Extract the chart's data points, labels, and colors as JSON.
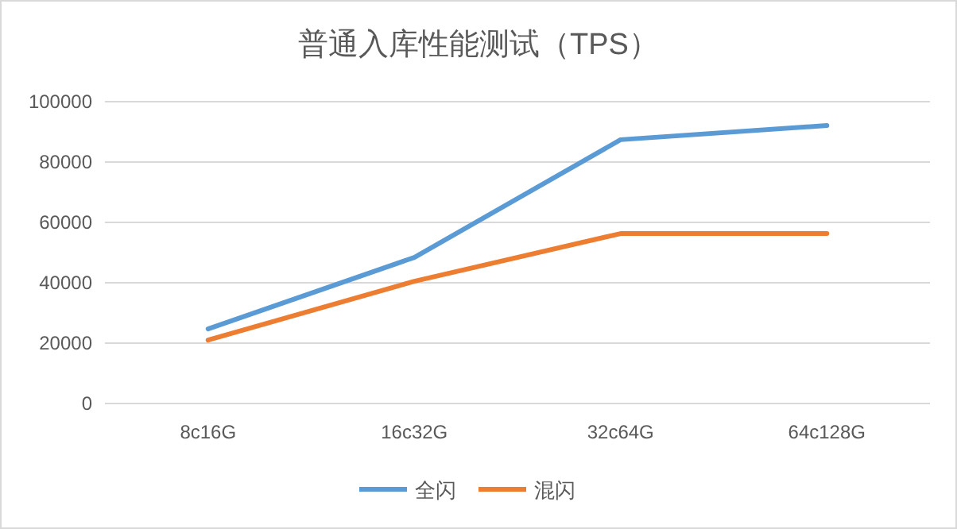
{
  "chart_data": {
    "type": "line",
    "title": "普通入库性能测试（TPS）",
    "categories": [
      "8c16G",
      "16c32G",
      "32c64G",
      "64c128G"
    ],
    "series": [
      {
        "name": "全闪",
        "color": "#5b9bd5",
        "values": [
          24700,
          48400,
          87400,
          92100
        ]
      },
      {
        "name": "混闪",
        "color": "#ed7d31",
        "values": [
          21000,
          40500,
          56300,
          56300
        ]
      }
    ],
    "ylim": [
      0,
      100000
    ],
    "yticks": [
      0,
      20000,
      40000,
      60000,
      80000,
      100000
    ],
    "grid": "y",
    "legend": "bottom",
    "marker": "none",
    "line_style": "solid"
  }
}
